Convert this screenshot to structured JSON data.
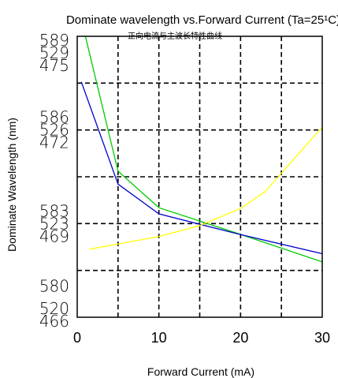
{
  "chart_data": {
    "type": "line",
    "title": "Dominate wavelength vs.Forward Current (Ta=25¹C)",
    "subtitle": "正向电流与主波长特性曲线",
    "xlabel": "Forward  Current  (mA)",
    "ylabel": "Dominate Wavelength  (nm)",
    "xlim": [
      0,
      30
    ],
    "x_ticks": [
      "0",
      "10",
      "20",
      "30"
    ],
    "y_tick_groups": [
      {
        "labels": [
          "589",
          "529",
          "475"
        ],
        "at": 0
      },
      {
        "labels": [
          "586",
          "526",
          "472"
        ],
        "at": 0.333
      },
      {
        "labels": [
          "583",
          "523",
          "469"
        ],
        "at": 0.667
      },
      {
        "labels": [
          "580"
        ],
        "at": 0.889
      },
      {
        "labels": [
          "520",
          "466"
        ],
        "at": 1.0
      }
    ],
    "grid": true,
    "series": [
      {
        "color": "#00cc00",
        "x": [
          1,
          5,
          10,
          20,
          30
        ],
        "y": [
          0.0,
          0.48,
          0.61,
          0.705,
          0.803
        ]
      },
      {
        "color": "#0000cc",
        "x": [
          0.5,
          5,
          10,
          20,
          30
        ],
        "y": [
          0.162,
          0.526,
          0.632,
          0.706,
          0.774
        ]
      },
      {
        "color": "#ffff00",
        "x": [
          1.5,
          10,
          15,
          20,
          23,
          30
        ],
        "y": [
          0.758,
          0.713,
          0.674,
          0.613,
          0.553,
          0.323
        ]
      }
    ]
  }
}
